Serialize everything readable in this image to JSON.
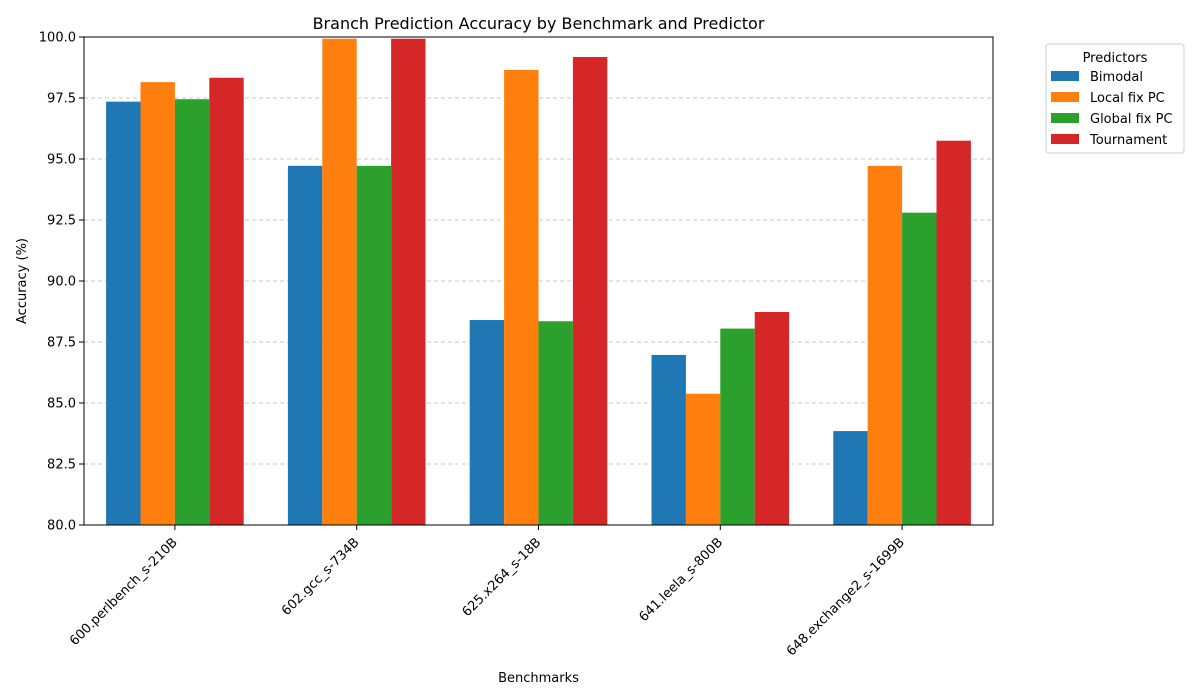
{
  "chart_data": {
    "type": "bar",
    "title": "Branch Prediction Accuracy by Benchmark and Predictor",
    "xlabel": "Benchmarks",
    "ylabel": "Accuracy (%)",
    "ylim": [
      80,
      100
    ],
    "yticks": [
      "80.0",
      "82.5",
      "85.0",
      "87.5",
      "90.0",
      "92.5",
      "95.0",
      "97.5",
      "100.0"
    ],
    "grid": "y-dashed",
    "legend": {
      "title": "Predictors",
      "placement": "outside-top-right"
    },
    "categories": [
      "600.perlbench_s-210B",
      "602.gcc_s-734B",
      "625.x264_s-18B",
      "641.leela_s-800B",
      "648.exchange2_s-1699B"
    ],
    "series": [
      {
        "name": "Bimodal",
        "color": "#1f77b4",
        "values": [
          97.35,
          94.72,
          88.4,
          86.97,
          83.85
        ]
      },
      {
        "name": "Local fix PC",
        "color": "#ff7f0e",
        "values": [
          98.15,
          99.93,
          98.65,
          85.38,
          94.72
        ]
      },
      {
        "name": "Global fix PC",
        "color": "#2ca02c",
        "values": [
          97.45,
          94.72,
          88.35,
          88.05,
          92.8
        ]
      },
      {
        "name": "Tournament",
        "color": "#d62728",
        "values": [
          98.33,
          99.93,
          99.18,
          88.73,
          95.75
        ]
      }
    ]
  }
}
